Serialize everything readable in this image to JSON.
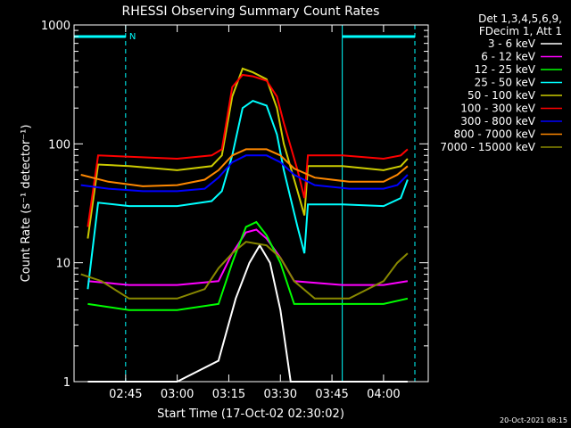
{
  "chart_data": {
    "type": "line",
    "title": "RHESSI Observing Summary Count Rates",
    "xlabel": "Start Time (17-Oct-02 02:30:02)",
    "ylabel": "Count Rate (s⁻¹ detector⁻¹)",
    "yscale": "log",
    "xlim": [
      "02:30",
      "04:13"
    ],
    "ylim": [
      1,
      1000
    ],
    "x_ticks": [
      "02:45",
      "03:00",
      "03:15",
      "03:30",
      "03:45",
      "04:00"
    ],
    "y_ticks": [
      "1",
      "10",
      "100",
      "1000"
    ],
    "legend_header": [
      "Det 1,3,4,5,6,9,",
      "FDecim 1, Att 1"
    ],
    "legend_position": "right",
    "annotations": {
      "flag_label": "N",
      "timestamp": "20-Oct-2021 08:15"
    },
    "series": [
      {
        "name": "3 - 6 keV",
        "color": "#ffffff",
        "points": [
          [
            "02:34",
            1
          ],
          [
            "02:46",
            1
          ],
          [
            "03:00",
            1
          ],
          [
            "03:12",
            1.5
          ],
          [
            "03:17",
            5
          ],
          [
            "03:21",
            10
          ],
          [
            "03:24",
            14
          ],
          [
            "03:27",
            10
          ],
          [
            "03:30",
            4
          ],
          [
            "03:33",
            1
          ],
          [
            "04:00",
            1
          ],
          [
            "04:07",
            1
          ]
        ]
      },
      {
        "name": "6 - 12 keV",
        "color": "#ff00ff",
        "points": [
          [
            "02:34",
            7
          ],
          [
            "02:46",
            6.5
          ],
          [
            "03:00",
            6.5
          ],
          [
            "03:12",
            7
          ],
          [
            "03:16",
            12
          ],
          [
            "03:20",
            18
          ],
          [
            "03:23",
            19
          ],
          [
            "03:26",
            16
          ],
          [
            "03:30",
            11
          ],
          [
            "03:34",
            7
          ],
          [
            "03:48",
            6.5
          ],
          [
            "04:00",
            6.5
          ],
          [
            "04:07",
            7
          ]
        ]
      },
      {
        "name": "12 - 25 keV",
        "color": "#00ff00",
        "points": [
          [
            "02:34",
            4.5
          ],
          [
            "02:46",
            4
          ],
          [
            "03:00",
            4
          ],
          [
            "03:12",
            4.5
          ],
          [
            "03:16",
            10
          ],
          [
            "03:20",
            20
          ],
          [
            "03:23",
            22
          ],
          [
            "03:26",
            17
          ],
          [
            "03:30",
            10
          ],
          [
            "03:34",
            4.5
          ],
          [
            "03:48",
            4.5
          ],
          [
            "04:00",
            4.5
          ],
          [
            "04:07",
            5
          ]
        ]
      },
      {
        "name": "25 - 50 keV",
        "color": "#00ffff",
        "points": [
          [
            "02:34",
            6
          ],
          [
            "02:37",
            32
          ],
          [
            "02:46",
            30
          ],
          [
            "03:00",
            30
          ],
          [
            "03:10",
            33
          ],
          [
            "03:13",
            40
          ],
          [
            "03:16",
            80
          ],
          [
            "03:19",
            200
          ],
          [
            "03:22",
            230
          ],
          [
            "03:26",
            210
          ],
          [
            "03:29",
            120
          ],
          [
            "03:31",
            60
          ],
          [
            "03:35",
            20
          ],
          [
            "03:37",
            12
          ],
          [
            "03:38",
            31
          ],
          [
            "03:48",
            31
          ],
          [
            "04:00",
            30
          ],
          [
            "04:05",
            35
          ],
          [
            "04:07",
            50
          ]
        ]
      },
      {
        "name": "50 - 100 keV",
        "color": "#cccc00",
        "points": [
          [
            "02:34",
            16
          ],
          [
            "02:37",
            67
          ],
          [
            "02:46",
            65
          ],
          [
            "03:00",
            60
          ],
          [
            "03:10",
            65
          ],
          [
            "03:13",
            80
          ],
          [
            "03:16",
            250
          ],
          [
            "03:19",
            430
          ],
          [
            "03:22",
            400
          ],
          [
            "03:26",
            350
          ],
          [
            "03:29",
            200
          ],
          [
            "03:31",
            100
          ],
          [
            "03:35",
            40
          ],
          [
            "03:37",
            25
          ],
          [
            "03:38",
            65
          ],
          [
            "03:48",
            65
          ],
          [
            "04:00",
            60
          ],
          [
            "04:05",
            65
          ],
          [
            "04:07",
            75
          ]
        ]
      },
      {
        "name": "100 - 300 keV",
        "color": "#ff0000",
        "points": [
          [
            "02:34",
            20
          ],
          [
            "02:37",
            80
          ],
          [
            "02:46",
            78
          ],
          [
            "03:00",
            75
          ],
          [
            "03:10",
            80
          ],
          [
            "03:13",
            90
          ],
          [
            "03:16",
            300
          ],
          [
            "03:19",
            380
          ],
          [
            "03:22",
            370
          ],
          [
            "03:26",
            340
          ],
          [
            "03:29",
            250
          ],
          [
            "03:31",
            150
          ],
          [
            "03:35",
            60
          ],
          [
            "03:37",
            35
          ],
          [
            "03:38",
            80
          ],
          [
            "03:48",
            80
          ],
          [
            "04:00",
            75
          ],
          [
            "04:05",
            80
          ],
          [
            "04:07",
            90
          ]
        ]
      },
      {
        "name": "300 - 800 keV",
        "color": "#0000ff",
        "points": [
          [
            "02:32",
            45
          ],
          [
            "02:40",
            42
          ],
          [
            "02:50",
            40
          ],
          [
            "03:00",
            40
          ],
          [
            "03:08",
            42
          ],
          [
            "03:12",
            52
          ],
          [
            "03:16",
            70
          ],
          [
            "03:20",
            80
          ],
          [
            "03:26",
            80
          ],
          [
            "03:30",
            70
          ],
          [
            "03:34",
            55
          ],
          [
            "03:40",
            45
          ],
          [
            "03:50",
            42
          ],
          [
            "04:00",
            42
          ],
          [
            "04:04",
            45
          ],
          [
            "04:07",
            55
          ]
        ]
      },
      {
        "name": "800 - 7000 keV",
        "color": "#ff8800",
        "points": [
          [
            "02:32",
            55
          ],
          [
            "02:40",
            48
          ],
          [
            "02:50",
            44
          ],
          [
            "03:00",
            45
          ],
          [
            "03:08",
            50
          ],
          [
            "03:12",
            60
          ],
          [
            "03:16",
            80
          ],
          [
            "03:20",
            90
          ],
          [
            "03:26",
            90
          ],
          [
            "03:30",
            80
          ],
          [
            "03:34",
            62
          ],
          [
            "03:40",
            52
          ],
          [
            "03:50",
            48
          ],
          [
            "04:00",
            48
          ],
          [
            "04:04",
            55
          ],
          [
            "04:07",
            65
          ]
        ]
      },
      {
        "name": "7000 - 15000 keV",
        "color": "#888800",
        "points": [
          [
            "02:32",
            8
          ],
          [
            "02:38",
            7
          ],
          [
            "02:46",
            5
          ],
          [
            "03:00",
            5
          ],
          [
            "03:08",
            6
          ],
          [
            "03:12",
            9
          ],
          [
            "03:16",
            12
          ],
          [
            "03:20",
            15
          ],
          [
            "03:26",
            14
          ],
          [
            "03:30",
            11
          ],
          [
            "03:34",
            7
          ],
          [
            "03:40",
            5
          ],
          [
            "03:50",
            5
          ],
          [
            "04:00",
            7
          ],
          [
            "04:04",
            10
          ],
          [
            "04:07",
            12
          ]
        ]
      }
    ]
  }
}
